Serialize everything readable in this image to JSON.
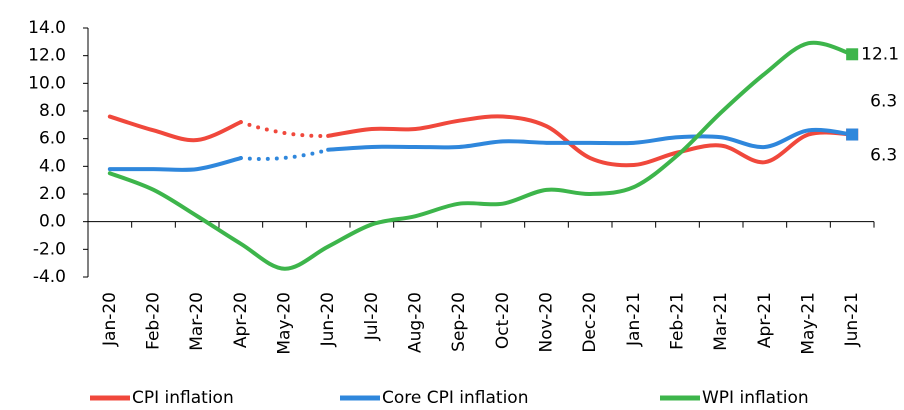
{
  "chart_data": {
    "type": "line",
    "categories": [
      "Jan-20",
      "Feb-20",
      "Mar-20",
      "Apr-20",
      "May-20",
      "Jun-20",
      "Jul-20",
      "Aug-20",
      "Sep-20",
      "Oct-20",
      "Nov-20",
      "Dec-20",
      "Jan-21",
      "Feb-21",
      "Mar-21",
      "Apr-21",
      "May-21",
      "Jun-21"
    ],
    "series": [
      {
        "name": "CPI inflation",
        "color": "#f0483c",
        "values": [
          7.6,
          6.6,
          5.9,
          7.2,
          null,
          6.2,
          6.7,
          6.7,
          7.3,
          7.6,
          6.9,
          4.6,
          4.1,
          5.0,
          5.5,
          4.3,
          6.3,
          6.3
        ]
      },
      {
        "name": "Core CPI inflation",
        "color": "#2f87dc",
        "values": [
          3.8,
          3.8,
          3.8,
          4.6,
          null,
          5.2,
          5.4,
          5.4,
          5.4,
          5.8,
          5.7,
          5.7,
          5.7,
          6.1,
          6.1,
          5.4,
          6.6,
          6.3
        ]
      },
      {
        "name": "WPI inflation",
        "color": "#3db54b",
        "values": [
          3.5,
          2.3,
          0.4,
          -1.6,
          -3.4,
          -1.8,
          -0.2,
          0.4,
          1.3,
          1.3,
          2.3,
          2.0,
          2.5,
          4.8,
          7.9,
          10.7,
          12.9,
          12.1
        ]
      }
    ],
    "ylim": [
      -4,
      14
    ],
    "yticks": [
      {
        "value": -4,
        "label": "-4.0"
      },
      {
        "value": -2,
        "label": "-2.0"
      },
      {
        "value": 0,
        "label": "0.0"
      },
      {
        "value": 2,
        "label": "2.0"
      },
      {
        "value": 4,
        "label": "4.0"
      },
      {
        "value": 6,
        "label": "6.0"
      },
      {
        "value": 8,
        "label": "8.0"
      },
      {
        "value": 10,
        "label": "10.0"
      },
      {
        "value": 12,
        "label": "12.0"
      },
      {
        "value": 14,
        "label": "14.0"
      }
    ],
    "legend": "bottom"
  }
}
